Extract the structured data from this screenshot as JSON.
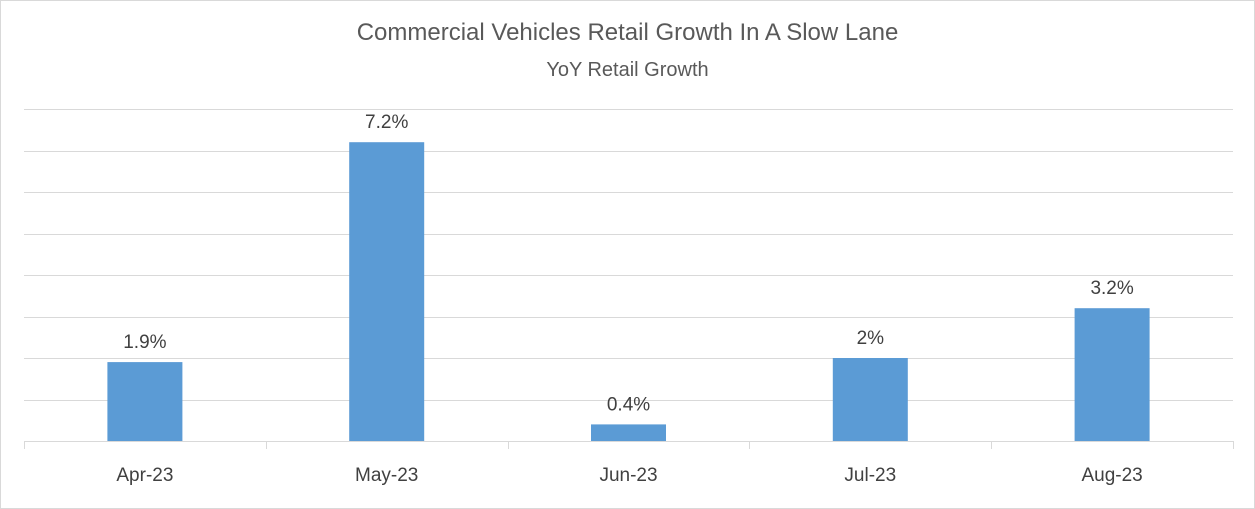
{
  "chart_data": {
    "type": "bar",
    "title": "Commercial Vehicles Retail Growth In A Slow Lane",
    "subtitle": "YoY Retail Growth",
    "categories": [
      "Apr-23",
      "May-23",
      "Jun-23",
      "Jul-23",
      "Aug-23"
    ],
    "values": [
      1.9,
      7.2,
      0.4,
      2.0,
      3.2
    ],
    "data_labels": [
      "1.9%",
      "7.2%",
      "0.4%",
      "2%",
      "3.2%"
    ],
    "ylim": [
      0,
      8
    ],
    "y_gridline_step": 1,
    "grid": true,
    "legend": "none",
    "bar_color": "#5b9bd5",
    "gridline_color": "#d9d9d9"
  }
}
